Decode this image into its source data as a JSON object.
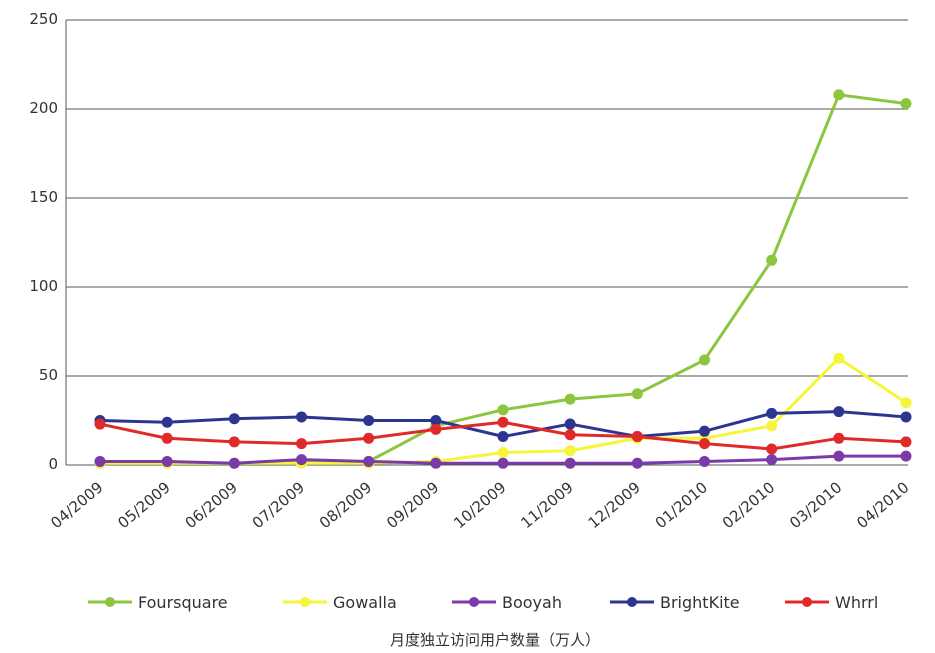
{
  "chart_data": {
    "type": "line",
    "xlabel": "月度独立访问用户数量（万人）",
    "ylabel": "",
    "ylim": [
      0,
      250
    ],
    "yticks": [
      0,
      50,
      100,
      150,
      200,
      250
    ],
    "grid": "horizontal",
    "legend_position": "bottom",
    "categories": [
      "04/2009",
      "05/2009",
      "06/2009",
      "07/2009",
      "08/2009",
      "09/2009",
      "10/2009",
      "11/2009",
      "12/2009",
      "01/2010",
      "02/2010",
      "03/2010",
      "04/2010"
    ],
    "series": [
      {
        "name": "Foursquare",
        "color": "#8cc63f",
        "values": [
          1,
          1,
          1,
          2,
          2,
          22,
          31,
          37,
          40,
          59,
          115,
          208,
          203
        ]
      },
      {
        "name": "Gowalla",
        "color": "#f5f53a",
        "values": [
          1,
          1,
          1,
          1,
          1,
          2,
          7,
          8,
          15,
          15,
          22,
          60,
          35
        ]
      },
      {
        "name": "Booyah",
        "color": "#7a3aa8",
        "values": [
          2,
          2,
          1,
          3,
          2,
          1,
          1,
          1,
          1,
          2,
          3,
          5,
          5
        ]
      },
      {
        "name": "BrightKite",
        "color": "#2c3690",
        "values": [
          25,
          24,
          26,
          27,
          25,
          25,
          16,
          23,
          16,
          19,
          29,
          30,
          27
        ]
      },
      {
        "name": "Whrrl",
        "color": "#e02a2a",
        "values": [
          23,
          15,
          13,
          12,
          15,
          20,
          24,
          17,
          16,
          12,
          9,
          15,
          13
        ]
      }
    ]
  }
}
